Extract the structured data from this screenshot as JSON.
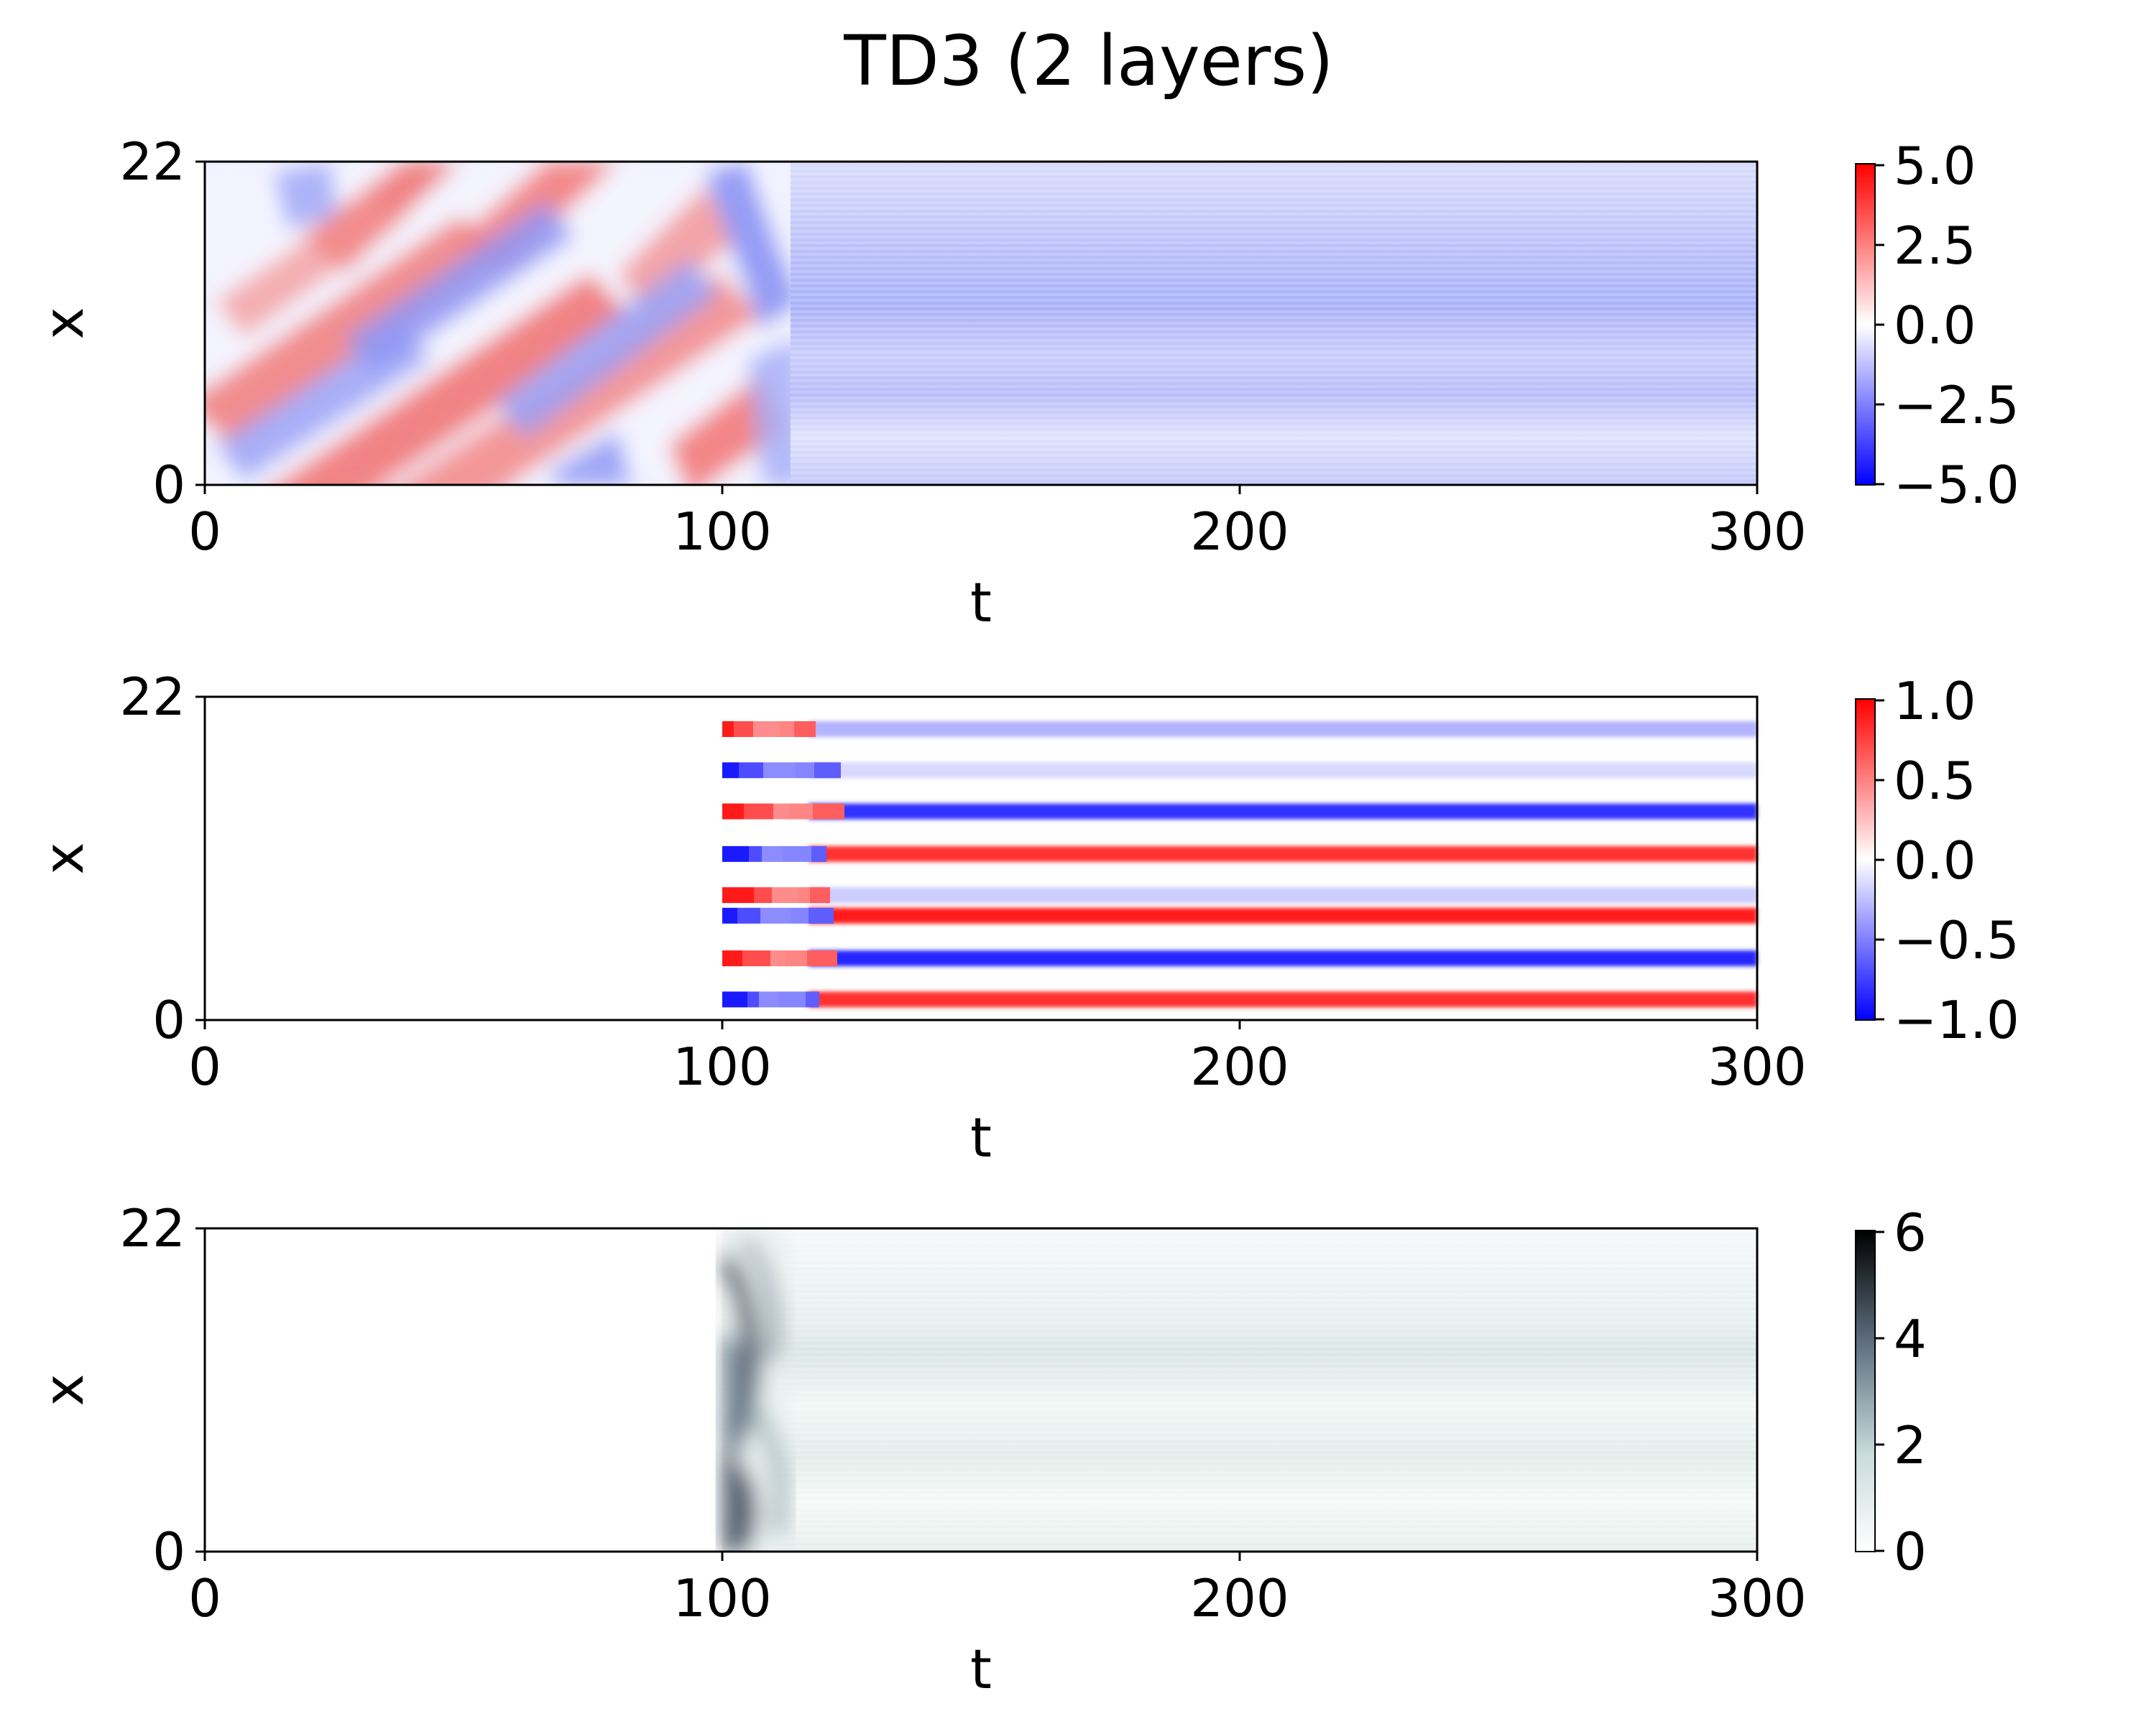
{
  "figure": {
    "title": "TD3 (2 layers)"
  },
  "chart_data": [
    {
      "type": "heatmap",
      "title": "",
      "xlabel": "t",
      "ylabel": "x",
      "xlim": [
        0,
        300
      ],
      "ylim": [
        0,
        22
      ],
      "xticks": [
        "0",
        "100",
        "200",
        "300"
      ],
      "yticks": [
        "0",
        "22"
      ],
      "colormap": "bwr",
      "colormap_colors": [
        "#0000ff",
        "#ffffff",
        "#ff0000"
      ],
      "clim": [
        -5,
        5
      ],
      "colorbar_ticks": [
        "5.0",
        "2.5",
        "0.0",
        "−2.5",
        "−5.0"
      ],
      "description": "Chaotic traveling-wave pattern with diagonal red and blue stripes for t<100, transitioning after t≈110 to a steady horizontally banded pattern of weak negative values."
    },
    {
      "type": "heatmap",
      "title": "",
      "xlabel": "t",
      "ylabel": "x",
      "xlim": [
        0,
        300
      ],
      "ylim": [
        0,
        22
      ],
      "xticks": [
        "0",
        "100",
        "200",
        "300"
      ],
      "yticks": [
        "0",
        "22"
      ],
      "colormap": "bwr",
      "colormap_colors": [
        "#0000ff",
        "#ffffff",
        "#ff0000"
      ],
      "clim": [
        -1,
        1
      ],
      "colorbar_ticks": [
        "1.0",
        "0.5",
        "0.0",
        "−0.5",
        "−1.0"
      ],
      "bands": [
        {
          "x": 19.8,
          "steady_value": -0.3
        },
        {
          "x": 17.0,
          "steady_value": -0.15
        },
        {
          "x": 14.2,
          "steady_value": -0.8
        },
        {
          "x": 11.3,
          "steady_value": 0.8
        },
        {
          "x": 8.5,
          "steady_value": -0.2
        },
        {
          "x": 7.1,
          "steady_value": 0.9
        },
        {
          "x": 4.2,
          "steady_value": -0.85
        },
        {
          "x": 1.4,
          "steady_value": 0.8
        }
      ],
      "active_from_t": 100
    },
    {
      "type": "heatmap",
      "title": "",
      "xlabel": "t",
      "ylabel": "x",
      "xlim": [
        0,
        300
      ],
      "ylim": [
        0,
        22
      ],
      "xticks": [
        "0",
        "100",
        "200",
        "300"
      ],
      "yticks": [
        "0",
        "22"
      ],
      "colormap": "bone_r",
      "colormap_colors": [
        "#ffffff",
        "#c9dcdc",
        "#5e6f80",
        "#000000"
      ],
      "clim": [
        0,
        6
      ],
      "colorbar_ticks": [
        "6",
        "4",
        "2",
        "0"
      ],
      "active_from_t": 100
    }
  ]
}
